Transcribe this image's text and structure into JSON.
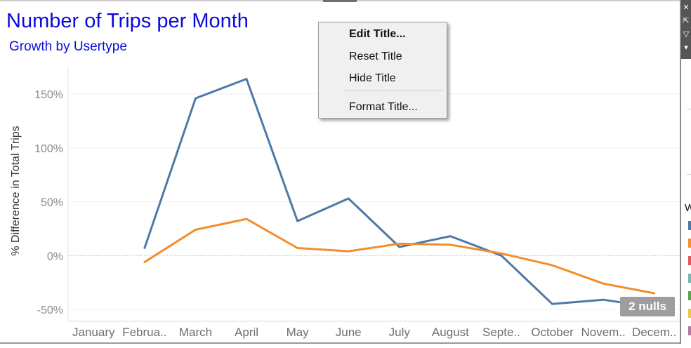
{
  "title": "Number of Trips per Month",
  "subtitle": "Growth by Usertype",
  "nulls_badge": "2 nulls",
  "context_menu": {
    "items": [
      "Edit Title...",
      "Reset Title",
      "Hide Title",
      "Format Title..."
    ]
  },
  "legend": {
    "title_fragment": "W",
    "swatch_colors": [
      "#4e79a7",
      "#f28e2b",
      "#e15759",
      "#76b7b2",
      "#59a14f",
      "#edc948",
      "#b07aa1"
    ]
  },
  "chart_data": {
    "type": "line",
    "ylabel": "% Difference in Total Trips",
    "xlabel": "",
    "categories": [
      "January",
      "Februa..",
      "March",
      "April",
      "May",
      "June",
      "July",
      "August",
      "Septe..",
      "October",
      "Novem..",
      "Decem.."
    ],
    "y_ticks": [
      "150%",
      "100%",
      "50%",
      "0%",
      "-50%"
    ],
    "y_tick_values": [
      150,
      100,
      50,
      0,
      -50
    ],
    "ylim": [
      -62,
      175
    ],
    "grid": true,
    "series": [
      {
        "color": "#4e79a7",
        "values": [
          null,
          7,
          146,
          164,
          32,
          53,
          8,
          18,
          0,
          -45,
          -41,
          -48
        ]
      },
      {
        "color": "#f28e2b",
        "values": [
          null,
          -6,
          24,
          34,
          7,
          4,
          11,
          10,
          2,
          -9,
          -26,
          -35
        ]
      }
    ]
  }
}
